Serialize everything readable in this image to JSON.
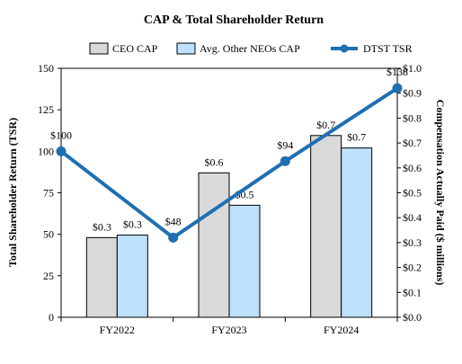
{
  "chart_data": {
    "type": "bar+line",
    "title": "CAP & Total Shareholder Return",
    "categories": [
      "FY2022",
      "FY2023",
      "FY2024"
    ],
    "left_axis": {
      "label": "Total Shareholder Return (TSR)",
      "range": [
        0,
        150
      ],
      "ticks": [
        "0",
        "25",
        "50",
        "75",
        "100",
        "125",
        "150"
      ]
    },
    "right_axis": {
      "label": "Compensation Actually Paid ($ millions)",
      "range": [
        0,
        1.0
      ],
      "ticks": [
        "$0.0",
        "$0.1",
        "$0.2",
        "$0.3",
        "$0.4",
        "$0.5",
        "$0.6",
        "$0.7",
        "$0.8",
        "$0.9",
        "$1.0"
      ]
    },
    "bar_series": [
      {
        "name": "CEO CAP",
        "color": "#d9d9d9",
        "values": [
          0.32,
          0.58,
          0.73
        ],
        "labels": [
          "$0.3",
          "$0.6",
          "$0.7"
        ]
      },
      {
        "name": "Avg. Other NEOs CAP",
        "color": "#bde0fb",
        "values": [
          0.33,
          0.45,
          0.68
        ],
        "labels": [
          "$0.3",
          "$0.5",
          "$0.7"
        ]
      }
    ],
    "line_series": {
      "name": "DTST TSR",
      "color": "#1f6fb2",
      "x": [
        0.0,
        1.0,
        2.0,
        3.0
      ],
      "values": [
        100,
        48,
        94,
        138
      ],
      "labels": [
        "$100",
        "$48",
        "$94",
        "$138"
      ]
    },
    "legend_position": "top",
    "grid": false
  }
}
